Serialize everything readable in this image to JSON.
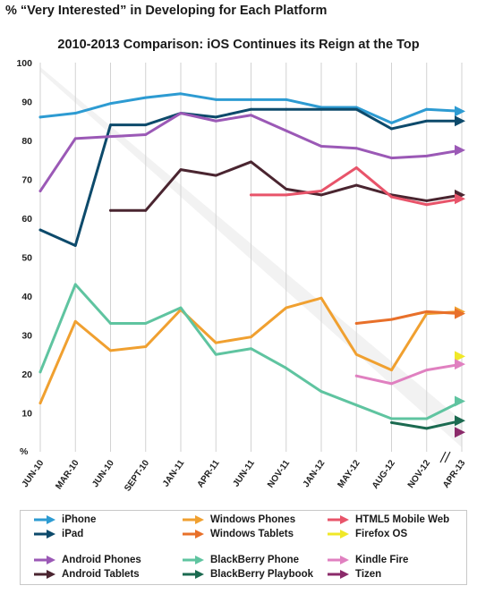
{
  "page_title": "% “Very Interested” in Developing for Each Platform",
  "chart_data": {
    "type": "line",
    "title": "2010-2013 Comparison: iOS Continues its Reign at the Top",
    "ylabel": "%",
    "xlabel": "",
    "ylim": [
      0,
      100
    ],
    "yticks": [
      10,
      20,
      30,
      40,
      50,
      60,
      70,
      80,
      90,
      100
    ],
    "categories": [
      "JUN-10",
      "MAR-10",
      "JUN-10",
      "SEPT-10",
      "JAN-11",
      "APR-11",
      "JUN-11",
      "NOV-11",
      "JAN-12",
      "MAY-12",
      "AUG-12",
      "NOV-12",
      "APR-13"
    ],
    "grid": "vertical",
    "legend_position": "bottom",
    "series": [
      {
        "name": "iPhone",
        "color": "#2d9bd2",
        "values": [
          86,
          87,
          89.5,
          91,
          92,
          90.5,
          90.5,
          90.5,
          88.5,
          88.5,
          84.5,
          88,
          87.5
        ]
      },
      {
        "name": "iPad",
        "color": "#0d4a6b",
        "values": [
          57,
          53,
          84,
          84,
          87,
          86,
          88,
          88,
          88,
          88,
          83,
          85,
          85
        ]
      },
      {
        "name": "Android Phones",
        "color": "#9b59b6",
        "values": [
          67,
          80.5,
          81,
          81.5,
          87,
          85,
          86.5,
          82.5,
          78.5,
          78,
          75.5,
          76,
          77.5
        ]
      },
      {
        "name": "Android Tablets",
        "color": "#4a2530",
        "values": [
          null,
          null,
          62,
          62,
          72.5,
          71,
          74.5,
          67.5,
          66,
          68.5,
          66,
          64.5,
          66
        ]
      },
      {
        "name": "Windows Phones",
        "color": "#f0a030",
        "values": [
          12.5,
          33.5,
          26,
          27,
          36.5,
          28,
          29.5,
          37,
          39.5,
          25,
          21,
          35.5,
          36
        ]
      },
      {
        "name": "Windows Tablets",
        "color": "#e8702a",
        "values": [
          null,
          null,
          null,
          null,
          null,
          null,
          null,
          null,
          null,
          33,
          34,
          36,
          35.5
        ]
      },
      {
        "name": "BlackBerry Phone",
        "color": "#5fc4a0",
        "values": [
          20.5,
          43,
          33,
          33,
          37,
          25,
          26.5,
          21.5,
          15.5,
          12,
          8.5,
          8.5,
          13
        ]
      },
      {
        "name": "BlackBerry Playbook",
        "color": "#1b6a50",
        "values": [
          null,
          null,
          null,
          null,
          null,
          null,
          null,
          null,
          null,
          null,
          7.5,
          6,
          8
        ]
      },
      {
        "name": "HTML5 Mobile Web",
        "color": "#e8546a",
        "values": [
          null,
          null,
          null,
          null,
          null,
          null,
          66,
          66,
          67,
          73,
          65.5,
          63.5,
          65
        ]
      },
      {
        "name": "Firefox OS",
        "color": "#f0e828",
        "values": [
          null,
          null,
          null,
          null,
          null,
          null,
          null,
          null,
          null,
          null,
          null,
          null,
          24.5
        ]
      },
      {
        "name": "Kindle Fire",
        "color": "#e080c0",
        "values": [
          null,
          null,
          null,
          null,
          null,
          null,
          null,
          null,
          null,
          19.5,
          17.5,
          21,
          22.5
        ]
      },
      {
        "name": "Tizen",
        "color": "#8b2a6a",
        "values": [
          null,
          null,
          null,
          null,
          null,
          null,
          null,
          null,
          null,
          null,
          null,
          null,
          5
        ]
      }
    ]
  }
}
